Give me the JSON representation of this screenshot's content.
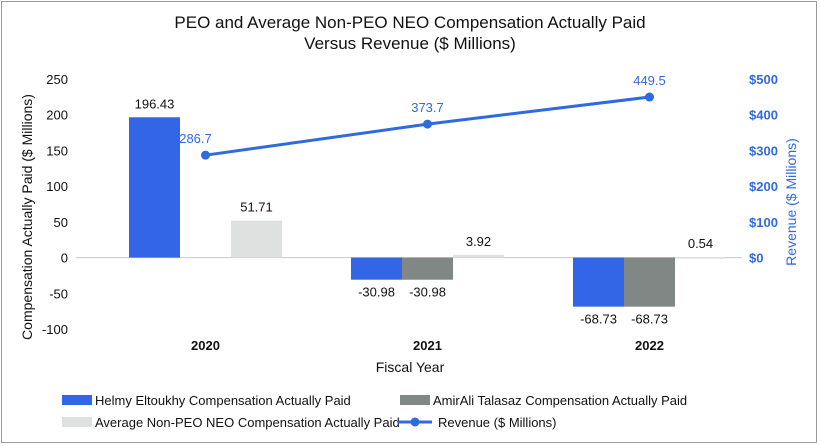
{
  "chart_data": {
    "type": "bar",
    "title_line1": "PEO and Average Non-PEO NEO Compensation Actually Paid",
    "title_line2": "Versus Revenue ($ Millions)",
    "xlabel": "Fiscal Year",
    "ylabel_left": "Compensation Actually Paid ($ Millions)",
    "ylabel_right": "Revenue ($ Millions)",
    "categories": [
      "2020",
      "2021",
      "2022"
    ],
    "ylim_left": [
      -100,
      250
    ],
    "yticks_left": [
      -100,
      -50,
      0,
      50,
      100,
      150,
      200,
      250
    ],
    "ylim_right": [
      0,
      500
    ],
    "yticks_right": [
      "$0",
      "$100",
      "$200",
      "$300",
      "$400",
      "$500"
    ],
    "yticks_right_values": [
      0,
      100,
      200,
      300,
      400,
      500
    ],
    "series": [
      {
        "name": "Helmy Eltoukhy Compensation Actually Paid",
        "kind": "bar",
        "axis": "left",
        "color": "#3366e6",
        "values": [
          196.43,
          -30.98,
          -68.73
        ],
        "labels": [
          "196.43",
          "-30.98",
          "-68.73"
        ]
      },
      {
        "name": "AmirAli Talasaz Compensation Actually Paid",
        "kind": "bar",
        "axis": "left",
        "color": "#808785",
        "values": [
          null,
          -30.98,
          -68.73
        ],
        "labels": [
          null,
          "-30.98",
          "-68.73"
        ]
      },
      {
        "name": "Average Non-PEO NEO Compensation Actually Paid",
        "kind": "bar",
        "axis": "left",
        "color": "#dfe1e0",
        "values": [
          51.71,
          3.92,
          0.54
        ],
        "labels": [
          "51.71",
          "3.92",
          "0.54"
        ]
      },
      {
        "name": "Revenue ($ Millions)",
        "kind": "line",
        "axis": "right",
        "color": "#2f6ae0",
        "values": [
          286.7,
          373.7,
          449.5
        ],
        "labels": [
          "286.7",
          "373.7",
          "449.5"
        ]
      }
    ],
    "legend_position": "bottom",
    "colors": {
      "label_text": "#111111",
      "right_axis": "#2f6ae0"
    }
  }
}
